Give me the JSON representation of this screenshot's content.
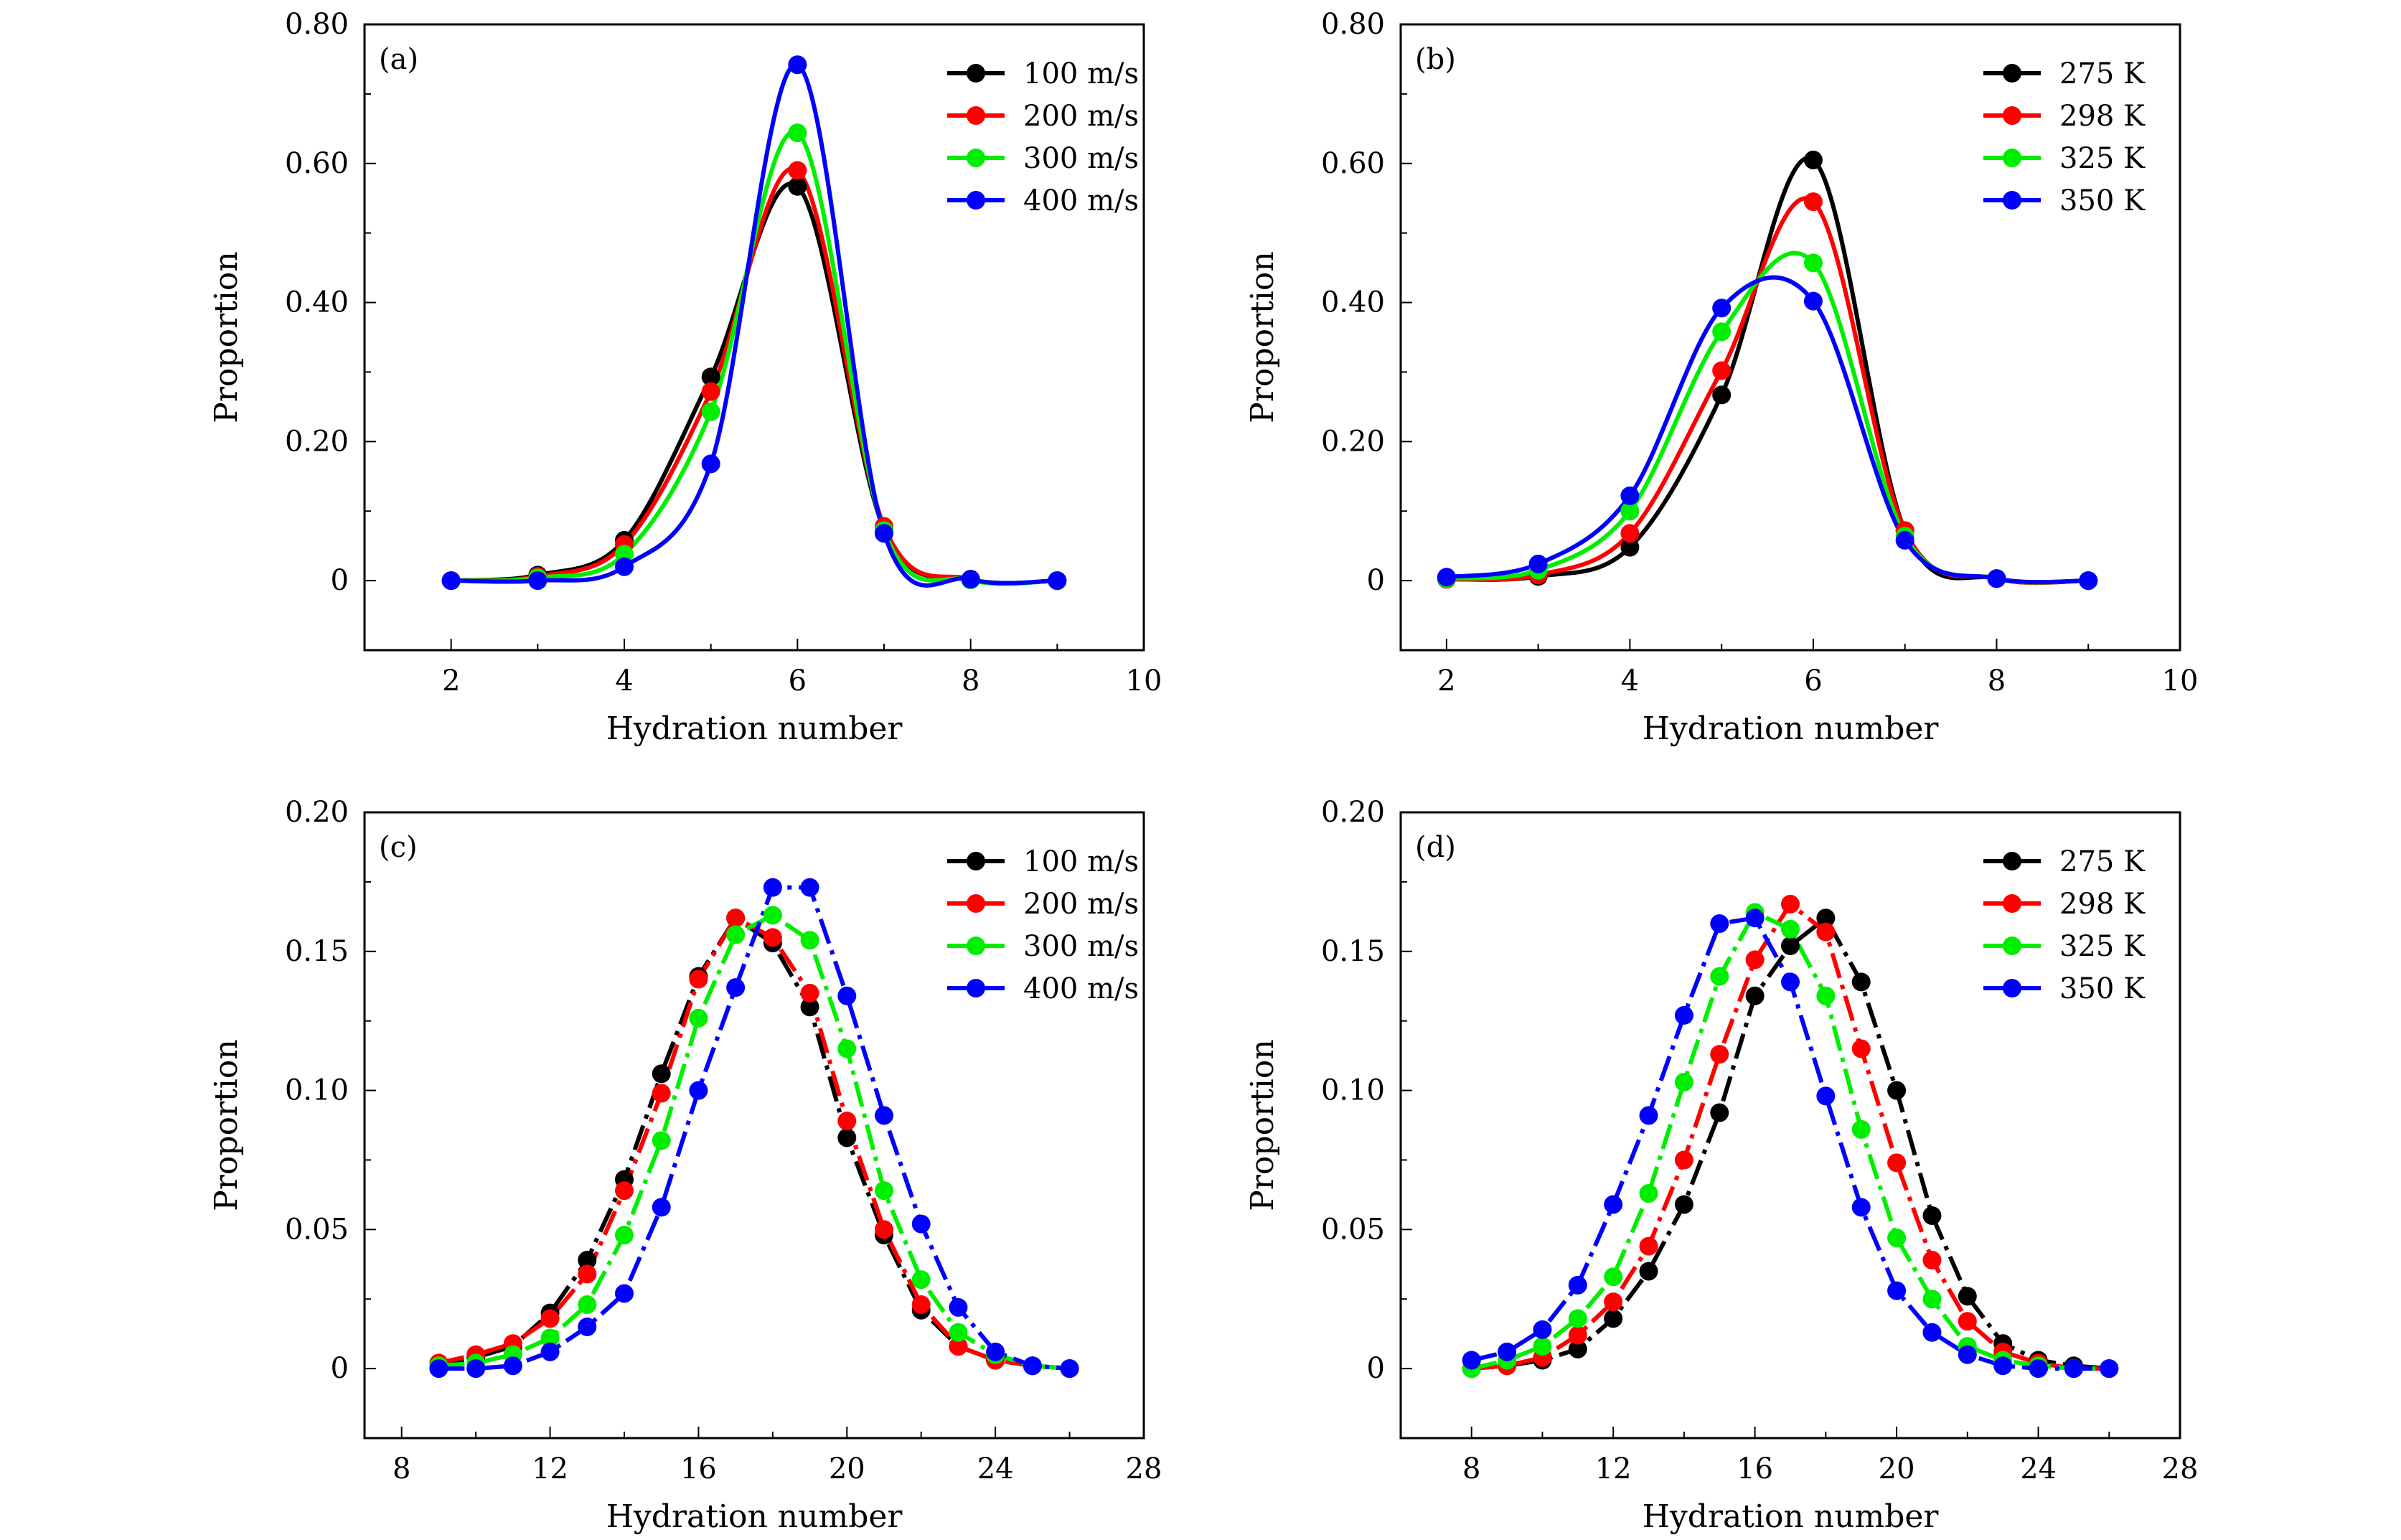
{
  "chart_data": [
    {
      "panel": "(a)",
      "type": "line",
      "xlabel": "Hydration number",
      "ylabel": "Proportion",
      "xlim": [
        1,
        10
      ],
      "ylim": [
        -0.1,
        0.8
      ],
      "xticks": [
        2,
        4,
        6,
        8,
        10
      ],
      "xtick_labels": [
        "2",
        "4",
        "6",
        "8",
        "10"
      ],
      "yticks": [
        0,
        0.2,
        0.4,
        0.6,
        0.8
      ],
      "ytick_labels": [
        "0",
        "0.20",
        "0.40",
        "0.60",
        "0.80"
      ],
      "line_style": "smooth",
      "legend_position": "top-right",
      "x": [
        2,
        3,
        4,
        5,
        6,
        7,
        8,
        9
      ],
      "series": [
        {
          "name": "100 m/s",
          "color": "#000000",
          "values": [
            0.0,
            0.008,
            0.058,
            0.293,
            0.567,
            0.074,
            0.002,
            0.0
          ]
        },
        {
          "name": "200 m/s",
          "color": "#ff0000",
          "values": [
            0.0,
            0.006,
            0.052,
            0.272,
            0.59,
            0.078,
            0.002,
            0.0
          ]
        },
        {
          "name": "300 m/s",
          "color": "#00ee00",
          "values": [
            0.0,
            0.004,
            0.038,
            0.243,
            0.644,
            0.072,
            0.001,
            0.0
          ]
        },
        {
          "name": "400 m/s",
          "color": "#0000ff",
          "values": [
            0.0,
            0.0,
            0.02,
            0.168,
            0.742,
            0.068,
            0.002,
            0.0
          ]
        }
      ]
    },
    {
      "panel": "(b)",
      "type": "line",
      "xlabel": "Hydration number",
      "ylabel": "Proportion",
      "xlim": [
        1.5,
        10
      ],
      "ylim": [
        -0.1,
        0.8
      ],
      "xticks": [
        2,
        4,
        6,
        8,
        10
      ],
      "xtick_labels": [
        "2",
        "4",
        "6",
        "8",
        "10"
      ],
      "yticks": [
        0,
        0.2,
        0.4,
        0.6,
        0.8
      ],
      "ytick_labels": [
        "0",
        "0.20",
        "0.40",
        "0.60",
        "0.80"
      ],
      "line_style": "smooth",
      "legend_position": "top-right",
      "x": [
        2,
        3,
        4,
        5,
        6,
        7,
        8,
        9
      ],
      "series": [
        {
          "name": "275 K",
          "color": "#000000",
          "values": [
            0.002,
            0.006,
            0.048,
            0.267,
            0.605,
            0.072,
            0.003,
            0.0
          ]
        },
        {
          "name": "298 K",
          "color": "#ff0000",
          "values": [
            0.002,
            0.008,
            0.068,
            0.302,
            0.545,
            0.072,
            0.003,
            0.0
          ]
        },
        {
          "name": "325 K",
          "color": "#00ee00",
          "values": [
            0.003,
            0.015,
            0.1,
            0.358,
            0.457,
            0.064,
            0.003,
            0.0
          ]
        },
        {
          "name": "350 K",
          "color": "#0000ff",
          "values": [
            0.005,
            0.024,
            0.122,
            0.392,
            0.402,
            0.058,
            0.003,
            0.0
          ]
        }
      ]
    },
    {
      "panel": "(c)",
      "type": "line",
      "xlabel": "Hydration number",
      "ylabel": "Proportion",
      "xlim": [
        7,
        28
      ],
      "ylim": [
        -0.025,
        0.2
      ],
      "xticks": [
        8,
        12,
        16,
        20,
        24,
        28
      ],
      "xtick_labels": [
        "8",
        "12",
        "16",
        "20",
        "24",
        "28"
      ],
      "yticks": [
        0,
        0.05,
        0.1,
        0.15,
        0.2
      ],
      "ytick_labels": [
        "0",
        "0.05",
        "0.10",
        "0.15",
        "0.20"
      ],
      "line_style": "dash-dot",
      "legend_position": "top-right",
      "x": [
        9,
        10,
        11,
        12,
        13,
        14,
        15,
        16,
        17,
        18,
        19,
        20,
        21,
        22,
        23,
        24,
        25,
        26
      ],
      "series": [
        {
          "name": "100 m/s",
          "color": "#000000",
          "values": [
            0.001,
            0.004,
            0.008,
            0.02,
            0.039,
            0.068,
            0.106,
            0.141,
            0.162,
            0.153,
            0.13,
            0.083,
            0.048,
            0.021,
            0.008,
            0.003,
            0.001,
            0.0
          ]
        },
        {
          "name": "200 m/s",
          "color": "#ff0000",
          "values": [
            0.002,
            0.005,
            0.009,
            0.018,
            0.034,
            0.064,
            0.099,
            0.14,
            0.162,
            0.155,
            0.135,
            0.089,
            0.05,
            0.023,
            0.008,
            0.003,
            0.001,
            0.0
          ]
        },
        {
          "name": "300 m/s",
          "color": "#00ee00",
          "values": [
            0.001,
            0.002,
            0.005,
            0.011,
            0.023,
            0.048,
            0.082,
            0.126,
            0.156,
            0.163,
            0.154,
            0.115,
            0.064,
            0.032,
            0.013,
            0.005,
            0.001,
            0.0
          ]
        },
        {
          "name": "400 m/s",
          "color": "#0000ff",
          "values": [
            0.0,
            0.0,
            0.001,
            0.006,
            0.015,
            0.027,
            0.058,
            0.1,
            0.137,
            0.173,
            0.173,
            0.134,
            0.091,
            0.052,
            0.022,
            0.006,
            0.001,
            0.0
          ]
        }
      ]
    },
    {
      "panel": "(d)",
      "type": "line",
      "xlabel": "Hydration number",
      "ylabel": "Proportion",
      "xlim": [
        6,
        28
      ],
      "ylim": [
        -0.025,
        0.2
      ],
      "xticks": [
        8,
        12,
        16,
        20,
        24,
        28
      ],
      "xtick_labels": [
        "8",
        "12",
        "16",
        "20",
        "24",
        "28"
      ],
      "yticks": [
        0,
        0.05,
        0.1,
        0.15,
        0.2
      ],
      "ytick_labels": [
        "0",
        "0.05",
        "0.10",
        "0.15",
        "0.20"
      ],
      "line_style": "dash-dot",
      "legend_position": "top-right",
      "x": [
        8,
        9,
        10,
        11,
        12,
        13,
        14,
        15,
        16,
        17,
        18,
        19,
        20,
        21,
        22,
        23,
        24,
        25,
        26
      ],
      "series": [
        {
          "name": "275 K",
          "color": "#000000",
          "values": [
            0.0,
            0.001,
            0.003,
            0.007,
            0.018,
            0.035,
            0.059,
            0.092,
            0.134,
            0.152,
            0.162,
            0.139,
            0.1,
            0.055,
            0.026,
            0.009,
            0.003,
            0.001,
            0.0
          ]
        },
        {
          "name": "298 K",
          "color": "#ff0000",
          "values": [
            0.0,
            0.001,
            0.004,
            0.012,
            0.024,
            0.044,
            0.075,
            0.113,
            0.147,
            0.167,
            0.157,
            0.115,
            0.074,
            0.039,
            0.017,
            0.006,
            0.002,
            0.0,
            0.0
          ]
        },
        {
          "name": "325 K",
          "color": "#00ee00",
          "values": [
            0.0,
            0.003,
            0.008,
            0.018,
            0.033,
            0.063,
            0.103,
            0.141,
            0.164,
            0.158,
            0.134,
            0.086,
            0.047,
            0.025,
            0.008,
            0.003,
            0.001,
            0.0,
            0.0
          ]
        },
        {
          "name": "350 K",
          "color": "#0000ff",
          "values": [
            0.003,
            0.006,
            0.014,
            0.03,
            0.059,
            0.091,
            0.127,
            0.16,
            0.162,
            0.139,
            0.098,
            0.058,
            0.028,
            0.013,
            0.005,
            0.001,
            0.0,
            0.0,
            0.0
          ]
        }
      ]
    }
  ]
}
